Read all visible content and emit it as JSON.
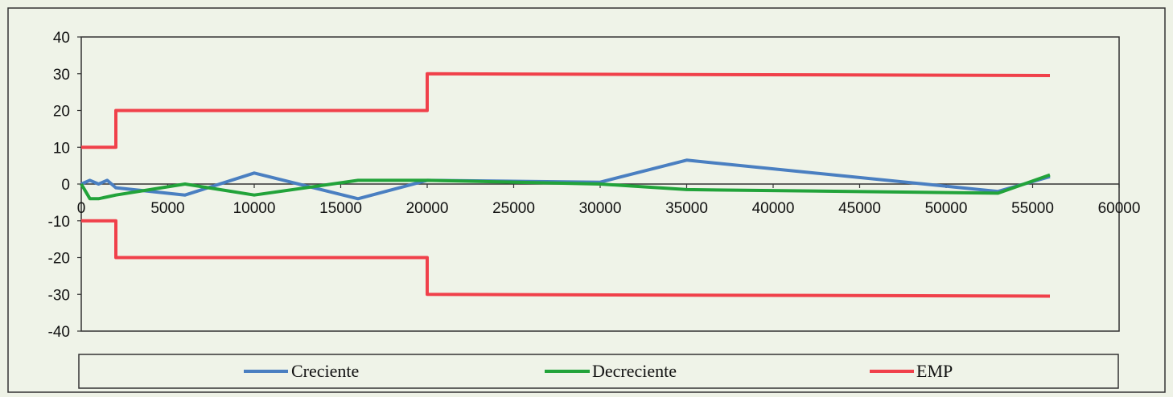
{
  "chart_data": {
    "type": "line",
    "title": "",
    "xlabel": "",
    "ylabel": "",
    "xlim": [
      0,
      60000
    ],
    "ylim": [
      -40,
      40
    ],
    "x_ticks": [
      0,
      5000,
      10000,
      15000,
      20000,
      25000,
      30000,
      35000,
      40000,
      45000,
      50000,
      55000,
      60000
    ],
    "y_ticks": [
      40,
      30,
      20,
      10,
      0,
      -10,
      -20,
      -30,
      -40
    ],
    "grid": false,
    "legend_position": "bottom",
    "series": [
      {
        "name": "Creciente",
        "color": "#4a7fc1",
        "points": [
          [
            0,
            0
          ],
          [
            500,
            1
          ],
          [
            1000,
            0
          ],
          [
            1500,
            1
          ],
          [
            2000,
            -1
          ],
          [
            6000,
            -3
          ],
          [
            10000,
            3
          ],
          [
            16000,
            -4
          ],
          [
            20000,
            1
          ],
          [
            30000,
            0.5
          ],
          [
            35000,
            6.5
          ],
          [
            53000,
            -2
          ],
          [
            56000,
            2
          ]
        ]
      },
      {
        "name": "Decreciente",
        "color": "#22a33a",
        "points": [
          [
            0,
            0
          ],
          [
            500,
            -4
          ],
          [
            1000,
            -4
          ],
          [
            1500,
            -3.5
          ],
          [
            2000,
            -3
          ],
          [
            6000,
            0
          ],
          [
            10000,
            -3
          ],
          [
            16000,
            1
          ],
          [
            20000,
            1
          ],
          [
            30000,
            0
          ],
          [
            35000,
            -1.5
          ],
          [
            53000,
            -2.5
          ],
          [
            56000,
            2.5
          ]
        ]
      },
      {
        "name": "EMP",
        "color": "#f0404a",
        "points": [
          [
            0,
            10
          ],
          [
            2000,
            10
          ],
          [
            2000,
            20
          ],
          [
            20000,
            20
          ],
          [
            20000,
            30
          ],
          [
            56000,
            29.5
          ]
        ],
        "lower_points": [
          [
            0,
            -10
          ],
          [
            2000,
            -10
          ],
          [
            2000,
            -20
          ],
          [
            20000,
            -20
          ],
          [
            20000,
            -30
          ],
          [
            56000,
            -30.5
          ]
        ]
      }
    ]
  }
}
